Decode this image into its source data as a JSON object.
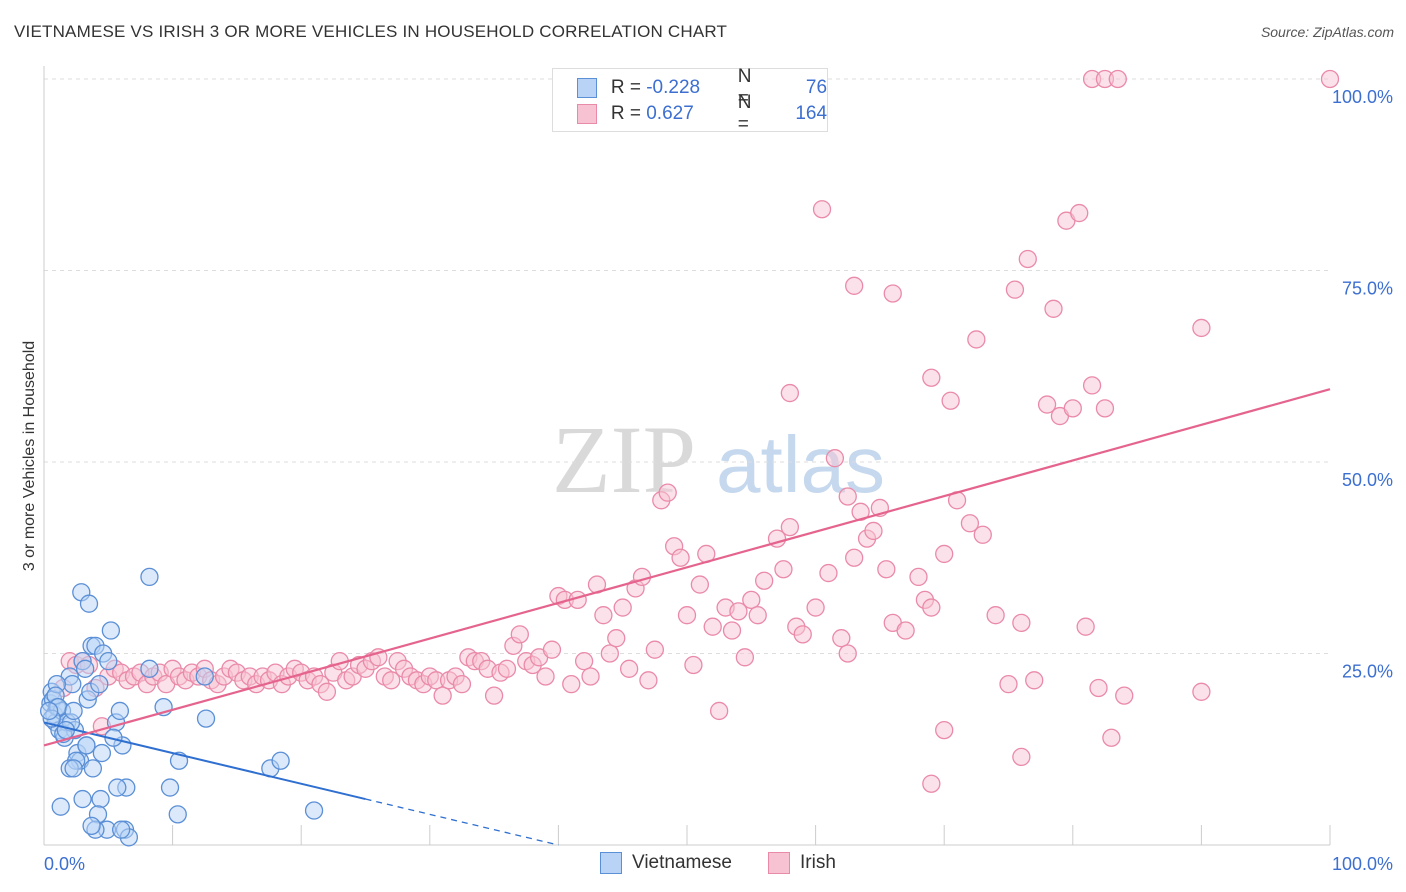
{
  "header": {
    "title": "VIETNAMESE VS IRISH 3 OR MORE VEHICLES IN HOUSEHOLD CORRELATION CHART",
    "source": "Source: ZipAtlas.com"
  },
  "legend": {
    "rows": [
      {
        "r_label": "R = ",
        "r_value": "-0.228",
        "n_label": "N = ",
        "n_value": "76"
      },
      {
        "r_label": "R = ",
        "r_value": "0.627",
        "n_label": "N = ",
        "n_value": "164"
      }
    ]
  },
  "watermark": {
    "zip": "ZIP",
    "atlas": "atlas"
  },
  "colors": {
    "vietnamese_fill": "#b8d3f5",
    "vietnamese_stroke": "#5b8fd6",
    "vietnamese_line": "#2f6fd0",
    "irish_fill": "#f7c3d3",
    "irish_stroke": "#ea8aa9",
    "irish_line": "#e5648e",
    "tick_text": "#3c6fd0",
    "grid": "#dddddd"
  },
  "chart_data": {
    "type": "scatter",
    "title": "VIETNAMESE VS IRISH 3 OR MORE VEHICLES IN HOUSEHOLD CORRELATION CHART",
    "xlabel": "",
    "ylabel": "3 or more Vehicles in Household",
    "xlim": [
      0,
      100
    ],
    "ylim": [
      0,
      100
    ],
    "x_tick_labels": [
      "0.0%",
      "100.0%"
    ],
    "y_tick_labels": [
      "25.0%",
      "50.0%",
      "75.0%",
      "100.0%"
    ],
    "y_ticks": [
      25,
      50,
      75,
      100
    ],
    "grid": true,
    "legend_position": "top-center",
    "series": [
      {
        "name": "Vietnamese",
        "R": -0.228,
        "N": 76,
        "trend": {
          "x0": 0,
          "y0": 16.0,
          "x1": 25,
          "y1": 6.0,
          "dash_to_x": 40
        },
        "points": [
          [
            0.5,
            18.5
          ],
          [
            0.6,
            20
          ],
          [
            0.7,
            19
          ],
          [
            0.8,
            17
          ],
          [
            0.9,
            16
          ],
          [
            1.0,
            18
          ],
          [
            1.2,
            15
          ],
          [
            1.4,
            17.5
          ],
          [
            1.6,
            14
          ],
          [
            1.8,
            16
          ],
          [
            2.0,
            22
          ],
          [
            2.2,
            21
          ],
          [
            2.4,
            15
          ],
          [
            2.6,
            12
          ],
          [
            2.8,
            11
          ],
          [
            3.0,
            24
          ],
          [
            3.2,
            23
          ],
          [
            3.4,
            19
          ],
          [
            3.6,
            20
          ],
          [
            3.8,
            10
          ],
          [
            1.0,
            21
          ],
          [
            1.5,
            14.5
          ],
          [
            2.1,
            16
          ],
          [
            2.5,
            11
          ],
          [
            2.9,
            33
          ],
          [
            3.5,
            31.5
          ],
          [
            3.7,
            26
          ],
          [
            4.0,
            26
          ],
          [
            4.3,
            21
          ],
          [
            4.6,
            25
          ],
          [
            5.2,
            28
          ],
          [
            5.0,
            24
          ],
          [
            5.6,
            16
          ],
          [
            5.9,
            17.5
          ],
          [
            6.1,
            13
          ],
          [
            6.4,
            7.5
          ],
          [
            5.7,
            7.5
          ],
          [
            4.4,
            6
          ],
          [
            3.0,
            6
          ],
          [
            1.3,
            5
          ],
          [
            4.2,
            4
          ],
          [
            4.9,
            2
          ],
          [
            4.0,
            2
          ],
          [
            3.7,
            2.5
          ],
          [
            6.3,
            2
          ],
          [
            6.6,
            1
          ],
          [
            6.0,
            2
          ],
          [
            2.0,
            10
          ],
          [
            2.3,
            10
          ],
          [
            3.3,
            13
          ],
          [
            8.2,
            35
          ],
          [
            8.2,
            23
          ],
          [
            9.3,
            18
          ],
          [
            9.8,
            7.5
          ],
          [
            10.4,
            4
          ],
          [
            10.5,
            11
          ],
          [
            12.5,
            22
          ],
          [
            12.6,
            16.5
          ],
          [
            17.6,
            10
          ],
          [
            18.4,
            11
          ],
          [
            21.0,
            4.5
          ],
          [
            0.9,
            19.5
          ],
          [
            1.1,
            18
          ],
          [
            0.6,
            16.5
          ],
          [
            1.7,
            15
          ],
          [
            2.3,
            17.5
          ],
          [
            0.4,
            17.5
          ],
          [
            4.5,
            12
          ],
          [
            5.4,
            14
          ],
          [
            3.3,
            13
          ]
        ]
      },
      {
        "name": "Irish",
        "R": 0.627,
        "N": 164,
        "trend": {
          "x0": 0,
          "y0": 13.0,
          "x1": 100,
          "y1": 59.5
        },
        "points": [
          [
            1.5,
            20.5
          ],
          [
            2.0,
            24
          ],
          [
            2.5,
            23.5
          ],
          [
            3.0,
            24
          ],
          [
            3.5,
            23.5
          ],
          [
            4.0,
            20.5
          ],
          [
            4.5,
            15.5
          ],
          [
            5.0,
            22
          ],
          [
            5.5,
            23
          ],
          [
            6.0,
            22.5
          ],
          [
            6.5,
            21.5
          ],
          [
            7.0,
            22
          ],
          [
            7.5,
            22.5
          ],
          [
            8.0,
            21
          ],
          [
            8.5,
            22
          ],
          [
            9.0,
            22.5
          ],
          [
            9.5,
            21
          ],
          [
            10.0,
            23
          ],
          [
            10.5,
            22
          ],
          [
            11.0,
            21.5
          ],
          [
            11.5,
            22.5
          ],
          [
            12.0,
            22
          ],
          [
            12.5,
            23
          ],
          [
            13.0,
            21.5
          ],
          [
            13.5,
            21
          ],
          [
            14.0,
            22
          ],
          [
            14.5,
            23
          ],
          [
            15.0,
            22.5
          ],
          [
            15.5,
            21.5
          ],
          [
            16.0,
            22
          ],
          [
            16.5,
            21
          ],
          [
            17.0,
            22
          ],
          [
            17.5,
            21.5
          ],
          [
            18.0,
            22.5
          ],
          [
            18.5,
            21
          ],
          [
            19.0,
            22
          ],
          [
            19.5,
            23
          ],
          [
            20.0,
            22.5
          ],
          [
            20.5,
            21.5
          ],
          [
            21.0,
            22
          ],
          [
            21.5,
            21
          ],
          [
            22.0,
            20
          ],
          [
            22.5,
            22.5
          ],
          [
            23.0,
            24
          ],
          [
            23.5,
            21.5
          ],
          [
            24.0,
            22
          ],
          [
            24.5,
            23.5
          ],
          [
            25.0,
            23
          ],
          [
            25.5,
            24
          ],
          [
            26.0,
            24.5
          ],
          [
            26.5,
            22
          ],
          [
            27.0,
            21.5
          ],
          [
            27.5,
            24
          ],
          [
            28.0,
            23
          ],
          [
            28.5,
            22
          ],
          [
            29.0,
            21.5
          ],
          [
            29.5,
            21
          ],
          [
            30.0,
            22
          ],
          [
            30.5,
            21.5
          ],
          [
            31.0,
            19.5
          ],
          [
            31.5,
            21.5
          ],
          [
            32.0,
            22
          ],
          [
            32.5,
            21
          ],
          [
            33.0,
            24.5
          ],
          [
            33.5,
            24
          ],
          [
            34.0,
            24
          ],
          [
            34.5,
            23
          ],
          [
            35.0,
            19.5
          ],
          [
            35.5,
            22.5
          ],
          [
            36.0,
            23
          ],
          [
            36.5,
            26
          ],
          [
            37.0,
            27.5
          ],
          [
            37.5,
            24
          ],
          [
            38.0,
            23.5
          ],
          [
            38.5,
            24.5
          ],
          [
            39.0,
            22
          ],
          [
            39.5,
            25.5
          ],
          [
            40.0,
            32.5
          ],
          [
            40.5,
            32
          ],
          [
            41.0,
            21
          ],
          [
            41.5,
            32
          ],
          [
            42.0,
            24
          ],
          [
            42.5,
            22
          ],
          [
            43.0,
            34
          ],
          [
            43.5,
            30
          ],
          [
            44.0,
            25
          ],
          [
            44.5,
            27
          ],
          [
            45.0,
            31
          ],
          [
            45.5,
            23
          ],
          [
            46.0,
            33.5
          ],
          [
            46.5,
            35
          ],
          [
            47.0,
            21.5
          ],
          [
            47.5,
            25.5
          ],
          [
            48.0,
            45
          ],
          [
            48.5,
            46
          ],
          [
            49.0,
            39
          ],
          [
            49.5,
            37.5
          ],
          [
            50.0,
            30
          ],
          [
            50.5,
            23.5
          ],
          [
            51.0,
            34
          ],
          [
            51.5,
            38
          ],
          [
            52.0,
            28.5
          ],
          [
            52.5,
            17.5
          ],
          [
            53.0,
            31
          ],
          [
            53.5,
            28
          ],
          [
            54.0,
            30.5
          ],
          [
            54.5,
            24.5
          ],
          [
            55.0,
            32
          ],
          [
            55.5,
            30
          ],
          [
            56.0,
            34.5
          ],
          [
            57.0,
            40
          ],
          [
            57.5,
            36
          ],
          [
            58.0,
            41.5
          ],
          [
            58.5,
            28.5
          ],
          [
            59.0,
            27.5
          ],
          [
            60.0,
            31
          ],
          [
            61.0,
            35.5
          ],
          [
            61.5,
            50.5
          ],
          [
            62.0,
            27
          ],
          [
            62.5,
            45.5
          ],
          [
            63.0,
            37.5
          ],
          [
            63.5,
            43.5
          ],
          [
            64.0,
            40
          ],
          [
            64.5,
            41
          ],
          [
            65.0,
            44
          ],
          [
            65.5,
            36
          ],
          [
            66.0,
            29
          ],
          [
            67.0,
            28
          ],
          [
            68.0,
            35
          ],
          [
            68.5,
            32
          ],
          [
            69.0,
            31
          ],
          [
            70.0,
            38
          ],
          [
            71.0,
            45
          ],
          [
            72.0,
            42
          ],
          [
            73.0,
            40.5
          ],
          [
            74.0,
            30
          ],
          [
            75.0,
            21
          ],
          [
            76.0,
            29
          ],
          [
            77.0,
            21.5
          ],
          [
            78.0,
            57.5
          ],
          [
            79.0,
            56
          ],
          [
            80.0,
            57
          ],
          [
            81.0,
            28.5
          ],
          [
            82.0,
            20.5
          ],
          [
            83.0,
            14
          ],
          [
            84.0,
            19.5
          ],
          [
            60.5,
            83
          ],
          [
            63.0,
            73
          ],
          [
            66.0,
            72
          ],
          [
            69.0,
            61
          ],
          [
            70.5,
            58
          ],
          [
            72.5,
            66
          ],
          [
            75.5,
            72.5
          ],
          [
            76.5,
            76.5
          ],
          [
            78.5,
            70
          ],
          [
            79.5,
            81.5
          ],
          [
            80.5,
            82.5
          ],
          [
            81.5,
            60
          ],
          [
            82.5,
            57
          ],
          [
            90.0,
            67.5
          ],
          [
            81.5,
            100
          ],
          [
            82.5,
            100
          ],
          [
            83.5,
            100
          ],
          [
            100.0,
            100
          ],
          [
            58.0,
            59
          ],
          [
            62.5,
            25
          ],
          [
            69.0,
            8
          ],
          [
            70.0,
            15
          ],
          [
            76.0,
            11.5
          ],
          [
            90.0,
            20
          ]
        ]
      }
    ]
  },
  "bottom_legend": {
    "items": [
      {
        "label": "Vietnamese"
      },
      {
        "label": "Irish"
      }
    ]
  }
}
